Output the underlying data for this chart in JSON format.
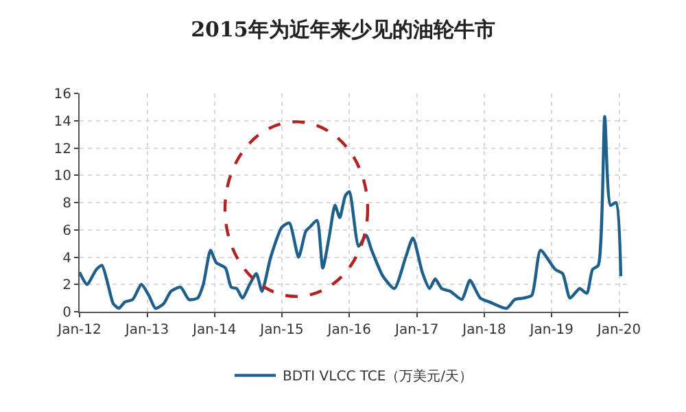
{
  "chart_data": {
    "type": "line",
    "title": "2015年为近年来少见的油轮牛市",
    "x": [
      "2012-01-01",
      "2012-02-10",
      "2012-04-01",
      "2012-05-01",
      "2012-06-01",
      "2012-07-01",
      "2012-08-01",
      "2012-09-01",
      "2012-10-15",
      "2012-12-01",
      "2013-01-10",
      "2013-02-15",
      "2013-04-01",
      "2013-05-10",
      "2013-07-01",
      "2013-08-15",
      "2013-10-01",
      "2013-11-01",
      "2013-12-10",
      "2014-01-10",
      "2014-03-01",
      "2014-04-01",
      "2014-05-01",
      "2014-06-01",
      "2014-07-10",
      "2014-08-15",
      "2014-09-15",
      "2014-11-01",
      "2015-01-01",
      "2015-02-10",
      "2015-04-01",
      "2015-05-10",
      "2015-06-01",
      "2015-07-10",
      "2015-08-10",
      "2015-09-15",
      "2015-10-15",
      "2015-11-10",
      "2015-12-10",
      "2016-01-01",
      "2016-02-20",
      "2016-04-01",
      "2016-05-01",
      "2016-07-01",
      "2016-09-01",
      "2016-11-01",
      "2016-12-10",
      "2017-02-01",
      "2017-03-10",
      "2017-04-10",
      "2017-05-15",
      "2017-07-01",
      "2017-09-01",
      "2017-10-15",
      "2017-12-10",
      "2018-02-01",
      "2018-05-01",
      "2018-06-15",
      "2018-08-01",
      "2018-09-15",
      "2018-11-01",
      "2019-01-20",
      "2019-03-01",
      "2019-04-10",
      "2019-06-01",
      "2019-07-10",
      "2019-08-10",
      "2019-09-10",
      "2019-10-15",
      "2019-11-15",
      "2019-12-15",
      "2020-01-10"
    ],
    "series": [
      {
        "name": "BDTI VLCC TCE（万美元/天）",
        "color": "#1f5f8b",
        "values": [
          2.9,
          2.0,
          3.1,
          3.4,
          2.1,
          0.6,
          0.25,
          0.7,
          0.9,
          2.0,
          1.2,
          0.25,
          0.6,
          1.5,
          1.8,
          0.9,
          1.0,
          2.0,
          4.5,
          3.6,
          3.2,
          1.8,
          1.7,
          1.0,
          2.0,
          2.8,
          1.5,
          4.0,
          6.2,
          6.5,
          4.0,
          5.9,
          6.2,
          6.7,
          3.2,
          5.6,
          7.8,
          6.9,
          8.5,
          8.8,
          4.8,
          5.6,
          4.5,
          2.6,
          1.7,
          4.0,
          5.4,
          2.8,
          1.7,
          2.4,
          1.7,
          1.5,
          0.9,
          2.3,
          1.0,
          0.7,
          0.25,
          0.9,
          1.0,
          1.2,
          4.5,
          3.1,
          2.8,
          1.0,
          1.7,
          1.35,
          3.1,
          3.4,
          14.3,
          7.8,
          8.0,
          2.6
        ]
      }
    ],
    "xlim": [
      "2012-01-01",
      "2020-02-20"
    ],
    "xticks": [
      {
        "value": "2012-01-01",
        "label": "Jan-12"
      },
      {
        "value": "2013-01-01",
        "label": "Jan-13"
      },
      {
        "value": "2014-01-01",
        "label": "Jan-14"
      },
      {
        "value": "2015-01-01",
        "label": "Jan-15"
      },
      {
        "value": "2016-01-01",
        "label": "Jan-16"
      },
      {
        "value": "2017-01-01",
        "label": "Jan-17"
      },
      {
        "value": "2018-01-01",
        "label": "Jan-18"
      },
      {
        "value": "2019-01-01",
        "label": "Jan-19"
      },
      {
        "value": "2020-01-01",
        "label": "Jan-20"
      }
    ],
    "ylim": [
      0,
      16
    ],
    "yticks": [
      0,
      2,
      4,
      6,
      8,
      10,
      12,
      14,
      16
    ],
    "grid": true,
    "legend": "bottom",
    "marker": "none",
    "line_style": "solid"
  }
}
